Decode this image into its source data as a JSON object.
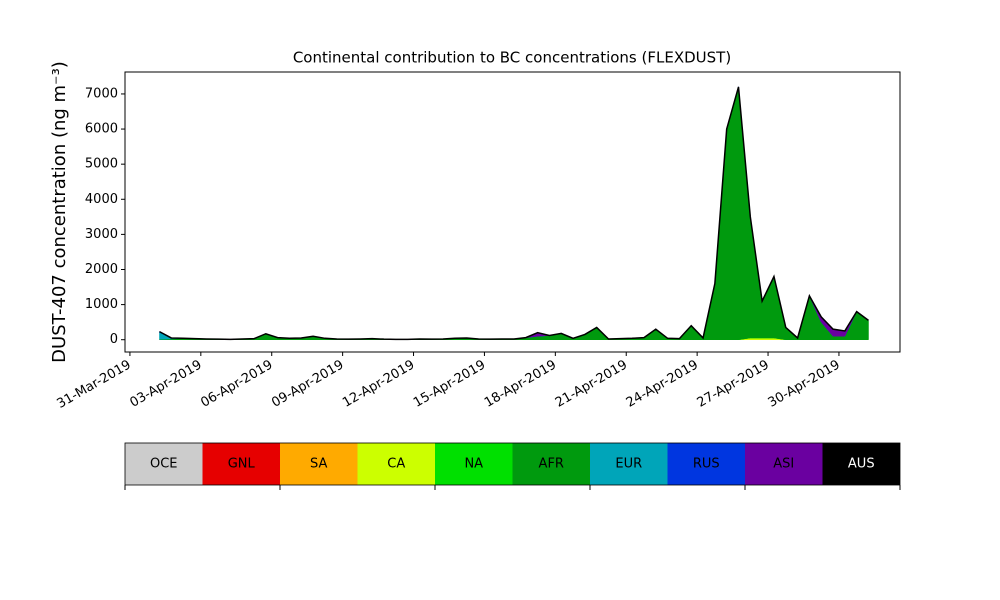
{
  "chart_data": {
    "type": "stacked-area",
    "title": "Continental contribution to BC concentrations (FLEXDUST)",
    "y_label": "DUST-407 concentration (ng m⁻³)",
    "x": [
      "2019-04-01T06:00",
      "2019-04-01T18:00",
      "2019-04-02T06:00",
      "2019-04-02T18:00",
      "2019-04-03T06:00",
      "2019-04-03T18:00",
      "2019-04-04T06:00",
      "2019-04-04T18:00",
      "2019-04-05T06:00",
      "2019-04-05T18:00",
      "2019-04-06T06:00",
      "2019-04-06T18:00",
      "2019-04-07T06:00",
      "2019-04-07T18:00",
      "2019-04-08T06:00",
      "2019-04-08T18:00",
      "2019-04-09T06:00",
      "2019-04-09T18:00",
      "2019-04-10T06:00",
      "2019-04-10T18:00",
      "2019-04-11T06:00",
      "2019-04-11T18:00",
      "2019-04-12T06:00",
      "2019-04-12T18:00",
      "2019-04-13T06:00",
      "2019-04-13T18:00",
      "2019-04-14T06:00",
      "2019-04-14T18:00",
      "2019-04-15T06:00",
      "2019-04-15T18:00",
      "2019-04-16T06:00",
      "2019-04-16T18:00",
      "2019-04-17T06:00",
      "2019-04-17T18:00",
      "2019-04-18T06:00",
      "2019-04-18T18:00",
      "2019-04-19T06:00",
      "2019-04-19T18:00",
      "2019-04-20T06:00",
      "2019-04-20T18:00",
      "2019-04-21T06:00",
      "2019-04-21T18:00",
      "2019-04-22T06:00",
      "2019-04-22T18:00",
      "2019-04-23T06:00",
      "2019-04-23T18:00",
      "2019-04-24T06:00",
      "2019-04-24T18:00",
      "2019-04-25T06:00",
      "2019-04-25T18:00",
      "2019-04-26T06:00",
      "2019-04-26T18:00",
      "2019-04-27T06:00",
      "2019-04-27T18:00",
      "2019-04-28T06:00",
      "2019-04-28T18:00",
      "2019-04-29T06:00",
      "2019-04-29T18:00",
      "2019-04-30T06:00",
      "2019-04-30T18:00",
      "2019-05-01T06:00"
    ],
    "series": [
      {
        "name": "OCE",
        "color": "#cccccc",
        "values": [
          0,
          0,
          0,
          0,
          0,
          0,
          0,
          0,
          0,
          0,
          0,
          0,
          0,
          0,
          0,
          0,
          0,
          0,
          0,
          0,
          0,
          0,
          0,
          0,
          0,
          0,
          0,
          0,
          0,
          0,
          0,
          0,
          0,
          0,
          0,
          0,
          0,
          0,
          0,
          0,
          0,
          0,
          0,
          0,
          0,
          0,
          0,
          0,
          0,
          0,
          0,
          0,
          0,
          0,
          0,
          0,
          0,
          0,
          0,
          0,
          0
        ]
      },
      {
        "name": "GNL",
        "color": "#e60000",
        "values": [
          0,
          0,
          0,
          0,
          0,
          0,
          0,
          0,
          0,
          0,
          0,
          0,
          0,
          0,
          0,
          0,
          0,
          0,
          0,
          0,
          0,
          0,
          0,
          0,
          0,
          0,
          0,
          0,
          0,
          0,
          0,
          0,
          0,
          0,
          0,
          0,
          0,
          0,
          0,
          0,
          0,
          0,
          0,
          0,
          0,
          0,
          0,
          0,
          0,
          0,
          0,
          0,
          0,
          0,
          0,
          0,
          0,
          0,
          0,
          0,
          0
        ]
      },
      {
        "name": "SA",
        "color": "#ffaa00",
        "values": [
          0,
          0,
          0,
          0,
          0,
          0,
          0,
          0,
          0,
          0,
          0,
          0,
          0,
          0,
          0,
          0,
          0,
          0,
          0,
          0,
          0,
          0,
          0,
          0,
          0,
          0,
          0,
          0,
          0,
          0,
          0,
          0,
          0,
          0,
          0,
          0,
          0,
          0,
          0,
          0,
          0,
          0,
          0,
          0,
          0,
          0,
          0,
          0,
          0,
          0,
          0,
          0,
          0,
          0,
          0,
          0,
          0,
          0,
          0,
          0,
          0
        ]
      },
      {
        "name": "CA",
        "color": "#ccff00",
        "values": [
          0,
          0,
          0,
          0,
          0,
          0,
          0,
          0,
          0,
          0,
          0,
          0,
          0,
          0,
          0,
          0,
          0,
          0,
          0,
          0,
          0,
          0,
          0,
          0,
          0,
          0,
          0,
          0,
          0,
          0,
          0,
          0,
          0,
          0,
          0,
          0,
          0,
          0,
          0,
          0,
          0,
          0,
          0,
          0,
          0,
          0,
          0,
          0,
          0,
          0,
          50,
          50,
          50,
          0,
          0,
          0,
          0,
          0,
          0,
          0,
          0
        ]
      },
      {
        "name": "NA",
        "color": "#00e000",
        "values": [
          0,
          0,
          0,
          0,
          0,
          0,
          0,
          0,
          0,
          0,
          0,
          0,
          0,
          0,
          0,
          0,
          0,
          0,
          0,
          0,
          0,
          0,
          0,
          0,
          0,
          0,
          0,
          0,
          0,
          0,
          0,
          0,
          0,
          0,
          0,
          0,
          0,
          0,
          0,
          0,
          0,
          0,
          0,
          0,
          0,
          0,
          0,
          0,
          0,
          0,
          0,
          0,
          0,
          0,
          0,
          0,
          0,
          0,
          0,
          0,
          0
        ]
      },
      {
        "name": "AFR",
        "color": "#009a0e",
        "values": [
          10,
          20,
          40,
          30,
          20,
          15,
          10,
          20,
          30,
          170,
          60,
          40,
          50,
          100,
          40,
          20,
          15,
          20,
          30,
          15,
          10,
          10,
          20,
          15,
          20,
          40,
          50,
          20,
          15,
          20,
          20,
          60,
          100,
          120,
          180,
          40,
          150,
          350,
          20,
          30,
          40,
          60,
          300,
          40,
          30,
          400,
          50,
          1600,
          6000,
          7200,
          3450,
          1050,
          1750,
          350,
          50,
          1250,
          500,
          100,
          100,
          800,
          550
        ]
      },
      {
        "name": "EUR",
        "color": "#00a5b9",
        "values": [
          200,
          30,
          0,
          0,
          0,
          0,
          0,
          0,
          0,
          0,
          0,
          0,
          0,
          0,
          0,
          0,
          0,
          0,
          0,
          0,
          0,
          0,
          0,
          0,
          0,
          0,
          0,
          0,
          0,
          0,
          0,
          0,
          0,
          0,
          0,
          0,
          0,
          0,
          0,
          0,
          0,
          0,
          0,
          0,
          0,
          0,
          0,
          0,
          0,
          0,
          0,
          0,
          0,
          0,
          0,
          0,
          0,
          0,
          0,
          0,
          0
        ]
      },
      {
        "name": "RUS",
        "color": "#0036e0",
        "values": [
          20,
          0,
          0,
          0,
          0,
          0,
          0,
          0,
          0,
          0,
          0,
          0,
          0,
          0,
          0,
          0,
          0,
          0,
          0,
          0,
          0,
          0,
          0,
          0,
          0,
          0,
          0,
          0,
          0,
          0,
          0,
          0,
          0,
          0,
          0,
          0,
          0,
          0,
          0,
          0,
          0,
          0,
          0,
          0,
          0,
          0,
          0,
          0,
          0,
          0,
          0,
          0,
          0,
          0,
          0,
          0,
          0,
          0,
          0,
          0,
          0
        ]
      },
      {
        "name": "ASI",
        "color": "#6a00a0",
        "values": [
          0,
          0,
          0,
          0,
          0,
          0,
          0,
          0,
          0,
          0,
          0,
          0,
          0,
          0,
          0,
          0,
          0,
          0,
          0,
          0,
          0,
          0,
          0,
          0,
          0,
          0,
          0,
          0,
          0,
          0,
          0,
          0,
          100,
          0,
          0,
          0,
          0,
          0,
          0,
          0,
          0,
          0,
          0,
          0,
          0,
          0,
          0,
          0,
          0,
          0,
          0,
          0,
          0,
          0,
          0,
          0,
          150,
          200,
          150,
          0,
          0
        ]
      },
      {
        "name": "AUS",
        "color": "#000000",
        "values": [
          0,
          0,
          0,
          0,
          0,
          0,
          0,
          0,
          0,
          0,
          0,
          0,
          0,
          0,
          0,
          0,
          0,
          0,
          0,
          0,
          0,
          0,
          0,
          0,
          0,
          0,
          0,
          0,
          0,
          0,
          0,
          0,
          0,
          0,
          0,
          0,
          0,
          0,
          0,
          0,
          0,
          0,
          0,
          0,
          0,
          0,
          0,
          0,
          0,
          0,
          0,
          0,
          0,
          0,
          0,
          0,
          0,
          0,
          0,
          0,
          0
        ]
      }
    ],
    "xlim": [
      "2019-03-30T19:00",
      "2019-05-02T14:00"
    ],
    "xticks": [
      {
        "value": "2019-03-31T00:00",
        "label": "31-Mar-2019"
      },
      {
        "value": "2019-04-03T00:00",
        "label": "03-Apr-2019"
      },
      {
        "value": "2019-04-06T00:00",
        "label": "06-Apr-2019"
      },
      {
        "value": "2019-04-09T00:00",
        "label": "09-Apr-2019"
      },
      {
        "value": "2019-04-12T00:00",
        "label": "12-Apr-2019"
      },
      {
        "value": "2019-04-15T00:00",
        "label": "15-Apr-2019"
      },
      {
        "value": "2019-04-18T00:00",
        "label": "18-Apr-2019"
      },
      {
        "value": "2019-04-21T00:00",
        "label": "21-Apr-2019"
      },
      {
        "value": "2019-04-24T00:00",
        "label": "24-Apr-2019"
      },
      {
        "value": "2019-04-27T00:00",
        "label": "27-Apr-2019"
      },
      {
        "value": "2019-04-30T00:00",
        "label": "30-Apr-2019"
      }
    ],
    "ylim": [
      -350,
      7625
    ],
    "yticks": [
      0,
      1000,
      2000,
      3000,
      4000,
      5000,
      6000,
      7000
    ]
  }
}
